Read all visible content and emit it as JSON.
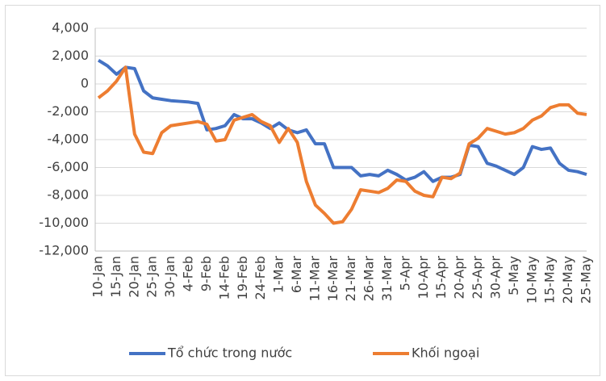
{
  "chart_data": {
    "type": "line",
    "categories": [
      "10-Jan",
      null,
      "15-Jan",
      null,
      "20-Jan",
      null,
      "25-Jan",
      null,
      "30-Jan",
      null,
      "4-Feb",
      null,
      "9-Feb",
      null,
      "14-Feb",
      null,
      "19-Feb",
      null,
      "24-Feb",
      null,
      "1-Mar",
      null,
      "6-Mar",
      null,
      "11-Mar",
      null,
      "16-Mar",
      null,
      "21-Mar",
      null,
      "26-Mar",
      null,
      "31-Mar",
      null,
      "5-Apr",
      null,
      "10-Apr",
      null,
      "15-Apr",
      null,
      "20-Apr",
      null,
      "25-Apr",
      null,
      "30-Apr",
      null,
      "5-May",
      null,
      "10-May",
      null,
      "15-May",
      null,
      "20-May",
      null,
      "25-May"
    ],
    "series": [
      {
        "name": "Tổ chức trong nước",
        "color": "#4472c4",
        "values": [
          1700,
          1300,
          700,
          1200,
          1100,
          -500,
          -1000,
          -1100,
          -1200,
          -1250,
          -1300,
          -1400,
          -3300,
          -3200,
          -3000,
          -2200,
          -2500,
          -2500,
          -2800,
          -3200,
          -2800,
          -3300,
          -3500,
          -3300,
          -4300,
          -4300,
          -6000,
          -6000,
          -6000,
          -6600,
          -6500,
          -6600,
          -6200,
          -6500,
          -6900,
          -6700,
          -6300,
          -7000,
          -6700,
          -6700,
          -6500,
          -4400,
          -4500,
          -5700,
          -5900,
          -6200,
          -6500,
          -6000,
          -4500,
          -4700,
          -4600,
          -5700,
          -6200,
          -6300,
          -6500
        ]
      },
      {
        "name": "Khối ngoại",
        "color": "#ed7d31",
        "values": [
          -1000,
          -500,
          200,
          1200,
          -3600,
          -4900,
          -5000,
          -3500,
          -3000,
          -2900,
          -2800,
          -2700,
          -2900,
          -4100,
          -4000,
          -2600,
          -2400,
          -2200,
          -2700,
          -3000,
          -4200,
          -3200,
          -4200,
          -7000,
          -8700,
          -9300,
          -10000,
          -9900,
          -9000,
          -7600,
          -7700,
          -7800,
          -7500,
          -6900,
          -7000,
          -7700,
          -8000,
          -8100,
          -6700,
          -6800,
          -6400,
          -4300,
          -3900,
          -3200,
          -3400,
          -3600,
          -3500,
          -3200,
          -2600,
          -2300,
          -1700,
          -1500,
          -1500,
          -2100,
          -2200
        ]
      }
    ],
    "ylim": [
      -12000,
      4000
    ],
    "yticks": [
      {
        "value": -12000,
        "label": "-12,000"
      },
      {
        "value": -10000,
        "label": "-10,000"
      },
      {
        "value": -8000,
        "label": "-8,000"
      },
      {
        "value": -6000,
        "label": "-6,000"
      },
      {
        "value": -4000,
        "label": "-4,000"
      },
      {
        "value": -2000,
        "label": "-2,000"
      },
      0,
      {
        "value": 2000,
        "label": "2,000"
      },
      {
        "value": 4000,
        "label": "4,000"
      }
    ],
    "grid": true,
    "legend": "bottom"
  }
}
